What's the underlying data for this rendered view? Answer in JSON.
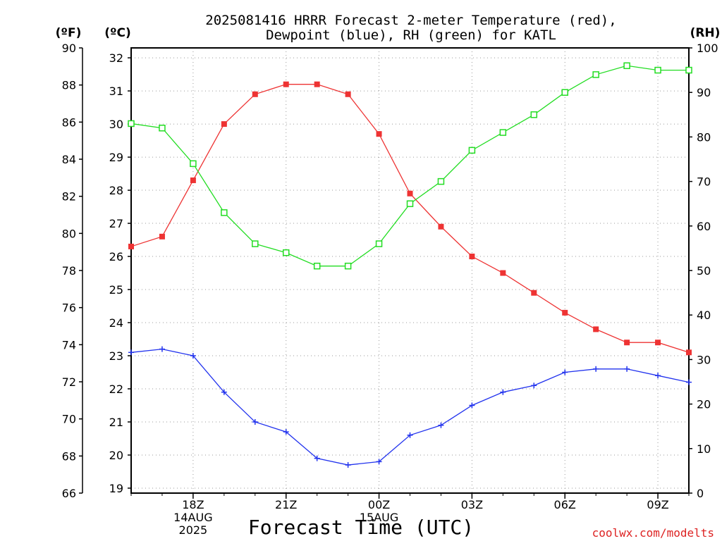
{
  "title_line1": "2025081416 HRRR Forecast 2-meter Temperature (red),",
  "title_line2": "Dewpoint (blue), RH (green) for KATL",
  "credit": "coolwx.com/modelts",
  "chart_data": {
    "type": "line",
    "x": [
      "16Z",
      "17Z",
      "18Z",
      "19Z",
      "20Z",
      "21Z",
      "22Z",
      "23Z",
      "00Z",
      "01Z",
      "02Z",
      "03Z",
      "04Z",
      "05Z",
      "06Z",
      "07Z",
      "08Z",
      "09Z",
      "10Z"
    ],
    "xlabel": "Forecast Time (UTC)",
    "x_ticks": [
      {
        "index": 2,
        "labels": [
          "18Z",
          "14AUG",
          "2025"
        ]
      },
      {
        "index": 5,
        "labels": [
          "21Z"
        ]
      },
      {
        "index": 8,
        "labels": [
          "00Z",
          "15AUG"
        ]
      },
      {
        "index": 11,
        "labels": [
          "03Z"
        ]
      },
      {
        "index": 14,
        "labels": [
          "06Z"
        ]
      },
      {
        "index": 17,
        "labels": [
          "09Z"
        ]
      }
    ],
    "axes": {
      "fahrenheit": {
        "label": "(ºF)",
        "ylim": [
          66,
          90
        ],
        "ticks": [
          66,
          68,
          70,
          72,
          74,
          76,
          78,
          80,
          82,
          84,
          86,
          88,
          90
        ]
      },
      "celsius": {
        "label": "(ºC)",
        "ylim": [
          18.85,
          32.3
        ],
        "ticks": [
          19,
          20,
          21,
          22,
          23,
          24,
          25,
          26,
          27,
          28,
          29,
          30,
          31,
          32
        ]
      },
      "rh": {
        "label": "(RH)",
        "ylim": [
          0,
          100
        ],
        "ticks": [
          0,
          10,
          20,
          30,
          40,
          50,
          60,
          70,
          80,
          90,
          100
        ]
      }
    },
    "grid": true,
    "series": [
      {
        "key": "temp",
        "axis": "celsius",
        "color": "#ee3333",
        "marker": "filled-square",
        "values": [
          26.3,
          26.6,
          28.3,
          30.0,
          30.9,
          31.2,
          31.2,
          30.9,
          29.7,
          27.9,
          26.9,
          26.0,
          25.5,
          24.9,
          24.3,
          23.8,
          23.4,
          23.4,
          23.1
        ]
      },
      {
        "key": "dewpoint",
        "axis": "celsius",
        "color": "#2233ee",
        "marker": "plus",
        "values": [
          23.1,
          23.2,
          23.0,
          21.9,
          21.0,
          20.7,
          19.9,
          19.7,
          19.8,
          20.6,
          20.9,
          21.5,
          21.9,
          22.1,
          22.5,
          22.6,
          22.6,
          22.4,
          22.2
        ]
      },
      {
        "key": "rh",
        "axis": "rh",
        "color": "#22dd22",
        "marker": "open-square",
        "values": [
          83,
          82,
          74,
          63,
          56,
          54,
          51,
          51,
          56,
          65,
          70,
          77,
          81,
          85,
          90,
          94,
          96,
          95,
          95
        ]
      }
    ]
  }
}
